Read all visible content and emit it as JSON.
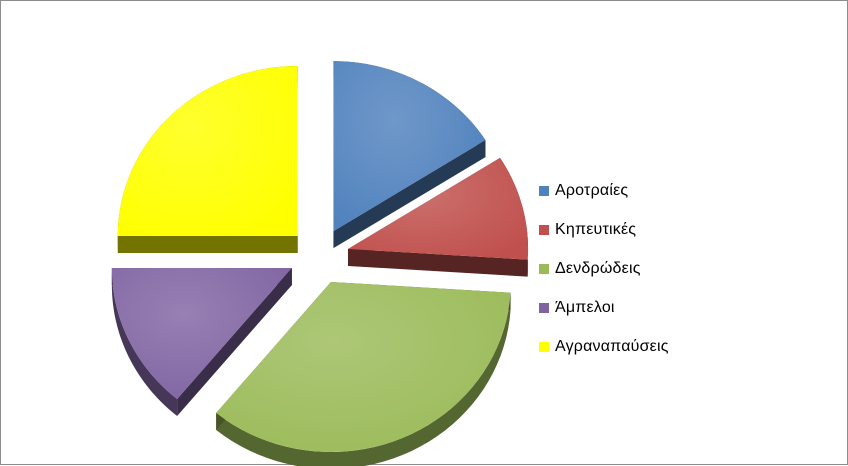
{
  "chart_data": {
    "type": "pie",
    "style": "exploded-3d",
    "legend_position": "right",
    "series": [
      {
        "name": "Αροτραίες",
        "value": 16,
        "color": "#4F81BD"
      },
      {
        "name": "Κηπευτικές",
        "value": 10,
        "color": "#C0504D"
      },
      {
        "name": "Δενδρώδεις",
        "value": 35,
        "color": "#9BBB59"
      },
      {
        "name": "Άμπελοι",
        "value": 14,
        "color": "#8064A2"
      },
      {
        "name": "Αγραναπαύσεις",
        "value": 25,
        "color": "#FFFF00"
      }
    ]
  }
}
